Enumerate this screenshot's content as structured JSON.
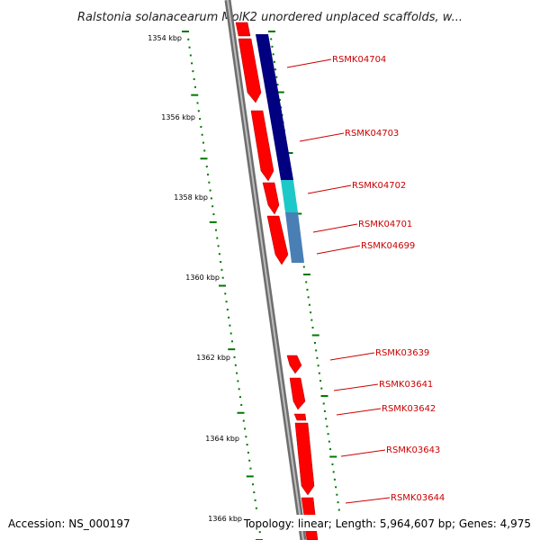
{
  "header": {
    "title": "Ralstonia solanacearum MolK2 unordered unplaced scaffolds, w..."
  },
  "footer": {
    "accession": "Accession: NS_000197",
    "summary": "Topology: linear; Length: 5,964,607 bp; Genes: 4,975"
  },
  "colors": {
    "backbone": "#808080",
    "gene_forward": "#ff0000",
    "gene_operon_navy": "#000080",
    "gene_operon_cyan": "#1ec8c8",
    "gene_operon_steel": "#4a7fb5",
    "tick": "#007700",
    "label": "#cc0000"
  },
  "ticks": {
    "unit": "kbp",
    "major_labels": [
      "1354 kbp",
      "1356 kbp",
      "1358 kbp",
      "1360 kbp",
      "1362 kbp",
      "1364 kbp",
      "1366 kbp"
    ]
  },
  "genes": [
    {
      "label": "RSMK04704",
      "color": "navy",
      "kind": "operon"
    },
    {
      "label": "RSMK04703",
      "color": "navy",
      "kind": "operon"
    },
    {
      "label": "RSMK04702",
      "color": "cyan",
      "kind": "operon"
    },
    {
      "label": "RSMK04701",
      "color": "steel",
      "kind": "operon"
    },
    {
      "label": "RSMK04699",
      "color": "steel",
      "kind": "operon"
    },
    {
      "label": "RSMK03639",
      "color": "red",
      "kind": "gene"
    },
    {
      "label": "RSMK03641",
      "color": "red",
      "kind": "gene"
    },
    {
      "label": "RSMK03642",
      "color": "red",
      "kind": "gene"
    },
    {
      "label": "RSMK03643",
      "color": "red",
      "kind": "gene"
    },
    {
      "label": "RSMK03644",
      "color": "red",
      "kind": "gene"
    }
  ]
}
